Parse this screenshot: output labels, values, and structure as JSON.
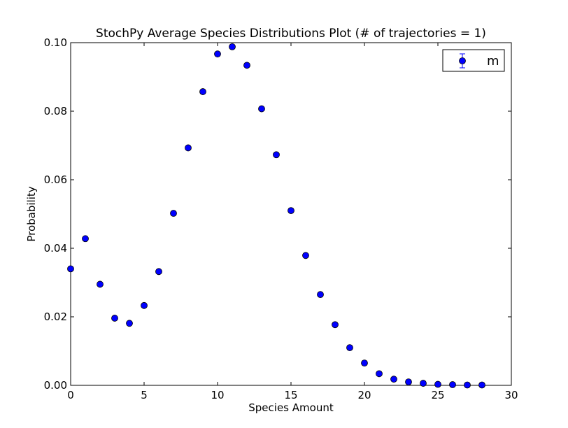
{
  "chart_data": {
    "type": "scatter",
    "title": "StochPy Average Species Distributions Plot (# of trajectories = 1)",
    "xlabel": "Species Amount",
    "ylabel": "Probability",
    "xlim": [
      0,
      30
    ],
    "ylim": [
      0,
      0.1
    ],
    "xticks": [
      "0",
      "5",
      "10",
      "15",
      "20",
      "25",
      "30"
    ],
    "yticks": [
      "0.00",
      "0.02",
      "0.04",
      "0.06",
      "0.08",
      "0.10"
    ],
    "grid": false,
    "legend_position": "top-right",
    "marker_color": "#0000ff",
    "series": [
      {
        "name": "m",
        "x": [
          0,
          1,
          2,
          3,
          4,
          5,
          6,
          7,
          8,
          9,
          10,
          11,
          12,
          13,
          14,
          15,
          16,
          17,
          18,
          19,
          20,
          21,
          22,
          23,
          24,
          25,
          26,
          27,
          28
        ],
        "y": [
          0.034,
          0.0428,
          0.0295,
          0.0196,
          0.0181,
          0.0233,
          0.0332,
          0.0502,
          0.0693,
          0.0857,
          0.0967,
          0.0988,
          0.0934,
          0.0807,
          0.0673,
          0.051,
          0.0379,
          0.0265,
          0.0177,
          0.011,
          0.0065,
          0.0034,
          0.0018,
          0.001,
          0.0006,
          0.0003,
          0.0002,
          0.0001,
          0.0001
        ]
      }
    ]
  }
}
